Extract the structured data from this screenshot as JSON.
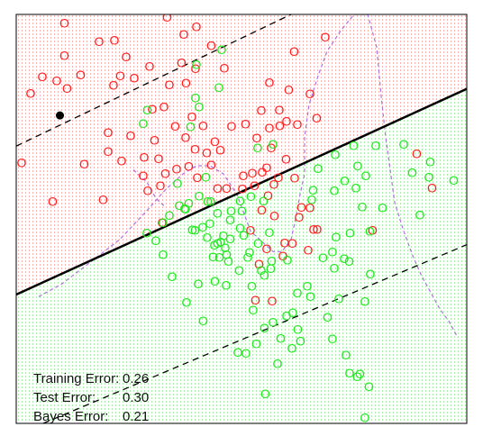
{
  "chart_data": {
    "type": "scatter",
    "title": "",
    "xlabel": "",
    "ylabel": "",
    "xlim": [
      0,
      1
    ],
    "ylim": [
      0,
      1
    ],
    "axes_box": true,
    "grid": false,
    "point_symbol": "O",
    "colors": {
      "class_red": "#ff2020",
      "class_green": "#22e822",
      "region_red_dots": "#e86a6a",
      "region_green_dots": "#55dd55",
      "boundary": "#000000",
      "margin": "#000000",
      "bayes_boundary": "#b070e0",
      "support_vector": "#000000"
    },
    "decision_boundary": {
      "style": "solid",
      "x": [
        0.0,
        1.0
      ],
      "y": [
        0.315,
        0.818
      ]
    },
    "margins": [
      {
        "style": "dashed",
        "x": [
          0.0,
          0.61
        ],
        "y": [
          0.678,
          1.0
        ]
      },
      {
        "style": "dashed",
        "x": [
          0.06,
          1.0
        ],
        "y": [
          0.0,
          0.437
        ]
      }
    ],
    "bayes_boundary": {
      "style": "dashed",
      "segments": [
        {
          "x": [
            0.05,
            0.1,
            0.16,
            0.23,
            0.29,
            0.33,
            0.37,
            0.4,
            0.43,
            0.46,
            0.49,
            0.52,
            0.55,
            0.57,
            0.59,
            0.61,
            0.62,
            0.63,
            0.64,
            0.64,
            0.65,
            0.67,
            0.69,
            0.72,
            0.75,
            0.78,
            0.8,
            0.81,
            0.82,
            0.83,
            0.84,
            0.86,
            0.88,
            0.9,
            0.92,
            0.94,
            0.96,
            0.98
          ],
          "y": [
            0.31,
            0.34,
            0.39,
            0.45,
            0.52,
            0.57,
            0.61,
            0.63,
            0.63,
            0.61,
            0.56,
            0.47,
            0.44,
            0.42,
            0.42,
            0.45,
            0.5,
            0.56,
            0.61,
            0.7,
            0.78,
            0.85,
            0.91,
            0.96,
            1.0,
            1.0,
            0.92,
            0.8,
            0.7,
            0.62,
            0.54,
            0.47,
            0.41,
            0.36,
            0.32,
            0.28,
            0.25,
            0.21
          ]
        },
        {
          "x": [
            0.26,
            0.29,
            0.31,
            0.33
          ],
          "y": [
            0.62,
            0.59,
            0.55,
            0.53
          ]
        }
      ]
    },
    "support_vectors": [
      {
        "x": 0.097,
        "y": 0.753
      }
    ],
    "series": [
      {
        "class": "red",
        "color": "#ff2020",
        "points": [
          [
            0.107,
            0.979
          ],
          [
            0.335,
            0.993
          ],
          [
            0.184,
            0.934
          ],
          [
            0.218,
            0.937
          ],
          [
            0.372,
            0.951
          ],
          [
            0.4,
            0.97
          ],
          [
            0.433,
            0.924
          ],
          [
            0.107,
            0.9
          ],
          [
            0.244,
            0.897
          ],
          [
            0.296,
            0.873
          ],
          [
            0.367,
            0.882
          ],
          [
            0.398,
            0.868
          ],
          [
            0.462,
            0.869
          ],
          [
            0.617,
            0.91
          ],
          [
            0.686,
            0.945
          ],
          [
            0.058,
            0.848
          ],
          [
            0.09,
            0.838
          ],
          [
            0.113,
            0.819
          ],
          [
            0.143,
            0.852
          ],
          [
            0.216,
            0.827
          ],
          [
            0.231,
            0.85
          ],
          [
            0.262,
            0.845
          ],
          [
            0.34,
            0.828
          ],
          [
            0.377,
            0.833
          ],
          [
            0.562,
            0.834
          ],
          [
            0.605,
            0.816
          ],
          [
            0.652,
            0.806
          ],
          [
            0.032,
            0.807
          ],
          [
            0.302,
            0.769
          ],
          [
            0.328,
            0.774
          ],
          [
            0.353,
            0.727
          ],
          [
            0.39,
            0.75
          ],
          [
            0.415,
            0.728
          ],
          [
            0.544,
            0.765
          ],
          [
            0.584,
            0.767
          ],
          [
            0.6,
            0.739
          ],
          [
            0.624,
            0.731
          ],
          [
            0.667,
            0.747
          ],
          [
            0.204,
            0.711
          ],
          [
            0.254,
            0.704
          ],
          [
            0.307,
            0.693
          ],
          [
            0.376,
            0.699
          ],
          [
            0.441,
            0.689
          ],
          [
            0.478,
            0.727
          ],
          [
            0.509,
            0.732
          ],
          [
            0.534,
            0.698
          ],
          [
            0.562,
            0.722
          ],
          [
            0.566,
            0.674
          ],
          [
            0.585,
            0.728
          ],
          [
            0.204,
            0.665
          ],
          [
            0.234,
            0.642
          ],
          [
            0.284,
            0.651
          ],
          [
            0.316,
            0.648
          ],
          [
            0.397,
            0.671
          ],
          [
            0.423,
            0.662
          ],
          [
            0.453,
            0.668
          ],
          [
            0.556,
            0.626
          ],
          [
            0.599,
            0.647
          ],
          [
            0.012,
            0.638
          ],
          [
            0.151,
            0.634
          ],
          [
            0.282,
            0.606
          ],
          [
            0.331,
            0.611
          ],
          [
            0.356,
            0.622
          ],
          [
            0.383,
            0.629
          ],
          [
            0.402,
            0.601
          ],
          [
            0.433,
            0.632
          ],
          [
            0.504,
            0.606
          ],
          [
            0.524,
            0.612
          ],
          [
            0.546,
            0.614
          ],
          [
            0.582,
            0.601
          ],
          [
            0.889,
            0.66
          ],
          [
            0.081,
            0.543
          ],
          [
            0.193,
            0.547
          ],
          [
            0.292,
            0.569
          ],
          [
            0.32,
            0.581
          ],
          [
            0.502,
            0.574
          ],
          [
            0.529,
            0.581
          ],
          [
            0.559,
            0.557
          ],
          [
            0.572,
            0.585
          ],
          [
            0.573,
            0.508
          ],
          [
            0.628,
            0.504
          ],
          [
            0.633,
            0.529
          ],
          [
            0.652,
            0.528
          ],
          [
            0.648,
            0.424
          ],
          [
            0.613,
            0.44
          ],
          [
            0.596,
            0.442
          ],
          [
            0.556,
            0.427
          ],
          [
            0.568,
            0.3
          ],
          [
            0.539,
            0.39
          ],
          [
            0.531,
            0.302
          ],
          [
            0.324,
            0.491
          ],
          [
            0.447,
            0.575
          ],
          [
            0.791,
            0.472
          ],
          [
            0.923,
            0.576
          ],
          [
            0.592,
            0.41
          ],
          [
            0.52,
            0.472
          ],
          [
            0.545,
            0.522
          ],
          [
            0.467,
            0.575
          ],
          [
            0.618,
            0.6
          ],
          [
            0.66,
            0.475
          ],
          [
            0.668,
            0.475
          ]
        ]
      },
      {
        "class": "green",
        "color": "#22e822",
        "points": [
          [
            0.4,
            0.878
          ],
          [
            0.456,
            0.914
          ],
          [
            0.45,
            0.822
          ],
          [
            0.398,
            0.796
          ],
          [
            0.406,
            0.774
          ],
          [
            0.291,
            0.766
          ],
          [
            0.282,
            0.733
          ],
          [
            0.387,
            0.726
          ],
          [
            0.536,
            0.674
          ],
          [
            0.57,
            0.683
          ],
          [
            0.708,
            0.658
          ],
          [
            0.798,
            0.68
          ],
          [
            0.86,
            0.683
          ],
          [
            0.749,
            0.68
          ],
          [
            0.67,
            0.623
          ],
          [
            0.758,
            0.63
          ],
          [
            0.776,
            0.606
          ],
          [
            0.729,
            0.594
          ],
          [
            0.754,
            0.576
          ],
          [
            0.706,
            0.569
          ],
          [
            0.656,
            0.547
          ],
          [
            0.659,
            0.571
          ],
          [
            0.768,
            0.53
          ],
          [
            0.813,
            0.528
          ],
          [
            0.879,
            0.613
          ],
          [
            0.916,
            0.602
          ],
          [
            0.919,
            0.64
          ],
          [
            0.971,
            0.595
          ],
          [
            0.785,
            0.47
          ],
          [
            0.896,
            0.51
          ],
          [
            0.741,
            0.466
          ],
          [
            0.71,
            0.456
          ],
          [
            0.739,
            0.397
          ],
          [
            0.702,
            0.42
          ],
          [
            0.786,
            0.366
          ],
          [
            0.774,
            0.299
          ],
          [
            0.716,
            0.305
          ],
          [
            0.691,
            0.26
          ],
          [
            0.653,
            0.311
          ],
          [
            0.6,
            0.263
          ],
          [
            0.614,
            0.271
          ],
          [
            0.625,
            0.23
          ],
          [
            0.526,
            0.278
          ],
          [
            0.533,
            0.195
          ],
          [
            0.57,
            0.248
          ],
          [
            0.551,
            0.233
          ],
          [
            0.587,
            0.208
          ],
          [
            0.58,
            0.146
          ],
          [
            0.612,
            0.184
          ],
          [
            0.631,
            0.202
          ],
          [
            0.702,
            0.207
          ],
          [
            0.732,
            0.167
          ],
          [
            0.74,
            0.123
          ],
          [
            0.757,
            0.115
          ],
          [
            0.763,
            0.121
          ],
          [
            0.783,
            0.09
          ],
          [
            0.774,
            0.014
          ],
          [
            0.553,
            0.073
          ],
          [
            0.492,
            0.174
          ],
          [
            0.51,
            0.172
          ],
          [
            0.415,
            0.251
          ],
          [
            0.378,
            0.296
          ],
          [
            0.346,
            0.359
          ],
          [
            0.326,
            0.413
          ],
          [
            0.31,
            0.447
          ],
          [
            0.29,
            0.466
          ],
          [
            0.34,
            0.509
          ],
          [
            0.376,
            0.524
          ],
          [
            0.397,
            0.472
          ],
          [
            0.391,
            0.474
          ],
          [
            0.414,
            0.48
          ],
          [
            0.43,
            0.489
          ],
          [
            0.425,
            0.543
          ],
          [
            0.447,
            0.514
          ],
          [
            0.374,
            0.525
          ],
          [
            0.383,
            0.539
          ],
          [
            0.406,
            0.556
          ],
          [
            0.432,
            0.543
          ],
          [
            0.421,
            0.602
          ],
          [
            0.358,
            0.587
          ],
          [
            0.362,
            0.533
          ],
          [
            0.326,
            0.491
          ],
          [
            0.44,
            0.436
          ],
          [
            0.447,
            0.44
          ],
          [
            0.454,
            0.444
          ],
          [
            0.46,
            0.459
          ],
          [
            0.451,
            0.406
          ],
          [
            0.467,
            0.413
          ],
          [
            0.471,
            0.396
          ],
          [
            0.497,
            0.478
          ],
          [
            0.505,
            0.46
          ],
          [
            0.518,
            0.419
          ],
          [
            0.537,
            0.441
          ],
          [
            0.544,
            0.374
          ],
          [
            0.551,
            0.362
          ],
          [
            0.565,
            0.379
          ],
          [
            0.567,
            0.398
          ],
          [
            0.495,
            0.375
          ],
          [
            0.523,
            0.336
          ],
          [
            0.466,
            0.338
          ],
          [
            0.514,
            0.406
          ],
          [
            0.424,
            0.455
          ],
          [
            0.441,
            0.348
          ],
          [
            0.404,
            0.341
          ],
          [
            0.437,
            0.408
          ],
          [
            0.464,
            0.43
          ],
          [
            0.475,
            0.452
          ],
          [
            0.475,
            0.498
          ],
          [
            0.477,
            0.52
          ],
          [
            0.501,
            0.52
          ],
          [
            0.497,
            0.544
          ],
          [
            0.521,
            0.555
          ],
          [
            0.549,
            0.544
          ],
          [
            0.562,
            0.467
          ],
          [
            0.624,
            0.319
          ],
          [
            0.706,
            0.38
          ],
          [
            0.728,
            0.403
          ],
          [
            0.602,
            0.4
          ],
          [
            0.646,
            0.336
          ],
          [
            0.681,
            0.405
          ]
        ]
      }
    ],
    "annotations": [
      {
        "label": "Training Error:",
        "value": "0.26"
      },
      {
        "label": "Test Error:",
        "value": "0.30"
      },
      {
        "label": "Bayes Error:",
        "value": "0.21"
      }
    ]
  }
}
